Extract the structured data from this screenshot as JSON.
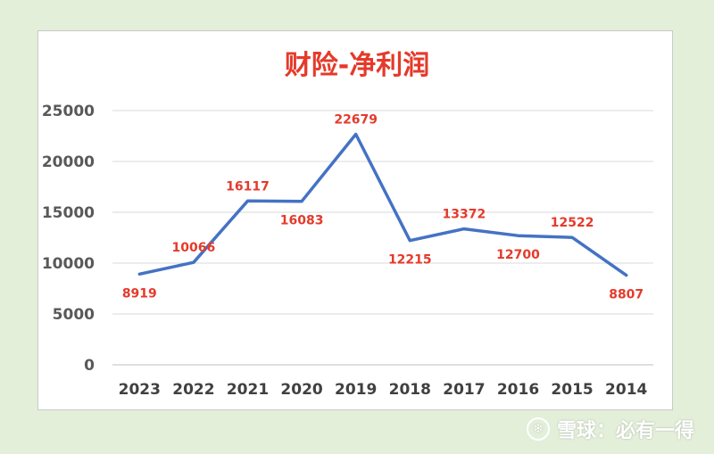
{
  "chart_data": {
    "type": "line",
    "title": "财险-净利润",
    "categories": [
      "2023",
      "2022",
      "2021",
      "2020",
      "2019",
      "2018",
      "2017",
      "2016",
      "2015",
      "2014"
    ],
    "series": [
      {
        "values": [
          8919,
          10066,
          16117,
          16083,
          22679,
          12215,
          13372,
          12700,
          12522,
          8807
        ]
      }
    ],
    "data_labels": [
      "8919",
      "10066",
      "16117",
      "16083",
      "22679",
      "12215",
      "13372",
      "12700",
      "12522",
      "8807"
    ],
    "y_ticks": [
      "0",
      "5000",
      "10000",
      "15000",
      "20000",
      "25000"
    ],
    "ylim": [
      0,
      25000
    ],
    "grid": true,
    "legend": "none",
    "line_color": "#4472c4",
    "label_color": "#e53a2b"
  },
  "watermark": {
    "logo_icon": "snowball-logo-icon",
    "text": "雪球：必有一得"
  }
}
